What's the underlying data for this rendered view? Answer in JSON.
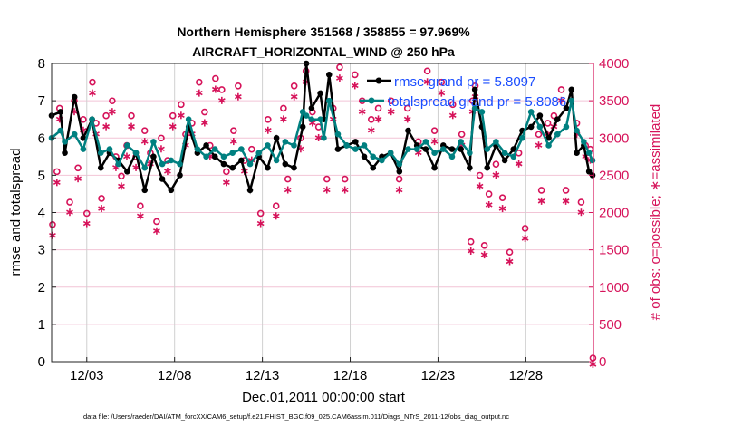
{
  "colors": {
    "rmse": "#000000",
    "spread": "#008080",
    "obs": "#d6135a",
    "legend_text": "#1a4dff",
    "grid_v": "#d0d0d0",
    "grid_h": "#f2c4d6"
  },
  "chart_data": {
    "type": "line",
    "title": [
      "Northern Hemisphere 351568 / 358855 = 97.969%",
      "AIRCRAFT_HORIZONTAL_WIND @ 250 hPa"
    ],
    "xlabel": "Dec.01,2011 00:00:00 start",
    "ylabel": "rmse and totalspread",
    "ylabel_right": "# of obs: o=possible; ∗=assimilated",
    "xlim_days": [
      0,
      30.85
    ],
    "ylim": [
      0,
      8
    ],
    "ylim_right": [
      0,
      4000
    ],
    "xticks": [
      {
        "day": 2,
        "label": "12/03"
      },
      {
        "day": 7,
        "label": "12/08"
      },
      {
        "day": 12,
        "label": "12/13"
      },
      {
        "day": 17,
        "label": "12/18"
      },
      {
        "day": 22,
        "label": "12/23"
      },
      {
        "day": 27,
        "label": "12/28"
      }
    ],
    "yticks": [
      "0",
      "1",
      "2",
      "3",
      "4",
      "5",
      "6",
      "7",
      "8"
    ],
    "yticks_right": [
      "0",
      "500",
      "1000",
      "1500",
      "2000",
      "2500",
      "3000",
      "3500",
      "4000"
    ],
    "grid": true,
    "legend_position": "top-right",
    "legend": [
      "rmse grand pr = 5.8097",
      "totalspread grand pr = 5.8086"
    ],
    "x_days": [
      0,
      0.5,
      0.75,
      1.3,
      1.8,
      2.3,
      2.8,
      3.3,
      3.8,
      4.3,
      4.8,
      5.3,
      5.8,
      6.3,
      6.8,
      7.3,
      7.8,
      8.3,
      8.8,
      9.3,
      9.8,
      10.3,
      10.8,
      11.3,
      11.8,
      12.3,
      12.8,
      13.3,
      13.8,
      14.3,
      14.5,
      14.8,
      15.3,
      15.5,
      15.8,
      16.3,
      16.8,
      17.3,
      17.8,
      18.3,
      18.8,
      19.3,
      19.8,
      20.3,
      20.8,
      21.3,
      21.8,
      22.3,
      22.8,
      23.3,
      23.8,
      24.1,
      24.5,
      24.8,
      25.3,
      25.8,
      26.3,
      26.8,
      27.3,
      27.8,
      28.3,
      28.8,
      29.3,
      29.6,
      29.9,
      30.3,
      30.6,
      30.8
    ],
    "series": [
      {
        "name": "rmse",
        "values": [
          6.6,
          6.7,
          5.6,
          7.1,
          6.0,
          6.5,
          5.2,
          5.6,
          5.4,
          5.1,
          5.6,
          4.6,
          5.5,
          4.9,
          4.6,
          5.0,
          6.3,
          5.6,
          5.8,
          5.5,
          5.3,
          5.2,
          5.4,
          4.6,
          5.5,
          5.2,
          6.0,
          5.3,
          5.2,
          6.3,
          8.0,
          6.8,
          7.2,
          6.5,
          7.7,
          5.7,
          5.8,
          5.9,
          5.5,
          5.2,
          5.5,
          5.6,
          5.1,
          6.2,
          5.8,
          5.7,
          5.2,
          5.8,
          5.7,
          5.7,
          5.2,
          7.3,
          6.3,
          5.2,
          5.8,
          5.4,
          5.7,
          6.2,
          6.3,
          6.6,
          6.0,
          6.5,
          6.8,
          7.3,
          5.6,
          5.8,
          5.1,
          5.0
        ]
      },
      {
        "name": "totalspread",
        "values": [
          6.0,
          6.2,
          5.9,
          6.1,
          5.7,
          6.5,
          5.6,
          5.7,
          5.3,
          5.8,
          5.6,
          5.2,
          5.9,
          5.3,
          5.4,
          5.3,
          6.5,
          5.7,
          5.5,
          5.7,
          5.5,
          5.6,
          5.7,
          5.3,
          5.6,
          5.8,
          5.4,
          5.9,
          5.8,
          6.7,
          6.6,
          6.5,
          6.5,
          6.0,
          7.0,
          6.1,
          5.8,
          5.7,
          5.8,
          5.5,
          5.4,
          5.6,
          5.3,
          5.7,
          5.7,
          5.9,
          5.6,
          5.7,
          5.5,
          5.9,
          5.6,
          6.8,
          6.7,
          5.7,
          5.9,
          5.6,
          5.5,
          6.0,
          6.7,
          6.3,
          5.8,
          6.1,
          6.3,
          7.0,
          6.2,
          5.9,
          5.6,
          5.4
        ]
      }
    ],
    "obs": {
      "columns": [
        "day",
        "possible",
        "assimilated"
      ],
      "rows": [
        [
          0.05,
          1790,
          1730
        ],
        [
          0.3,
          2500,
          2440
        ],
        [
          0.45,
          3350,
          3290
        ],
        [
          1.03,
          2090,
          2040
        ],
        [
          1.29,
          3450,
          3390
        ],
        [
          1.5,
          2550,
          2490
        ],
        [
          1.8,
          3200,
          3140
        ],
        [
          2.0,
          1940,
          1890
        ],
        [
          2.32,
          3700,
          3640
        ],
        [
          2.53,
          3150,
          3090
        ],
        [
          2.84,
          2140,
          2090
        ],
        [
          3.1,
          3250,
          3190
        ],
        [
          3.45,
          3450,
          3390
        ],
        [
          3.66,
          2700,
          2640
        ],
        [
          3.97,
          2440,
          2390
        ],
        [
          4.28,
          2850,
          2790
        ],
        [
          4.54,
          3250,
          3190
        ],
        [
          4.8,
          2700,
          2640
        ],
        [
          5.05,
          2040,
          1990
        ],
        [
          5.3,
          3050,
          2990
        ],
        [
          5.62,
          2750,
          2690
        ],
        [
          5.98,
          1830,
          1790
        ],
        [
          6.24,
          2950,
          2890
        ],
        [
          6.6,
          2650,
          2590
        ],
        [
          6.9,
          3250,
          3190
        ],
        [
          7.37,
          3400,
          3340
        ],
        [
          7.63,
          3000,
          2940
        ],
        [
          7.99,
          3150,
          3090
        ],
        [
          8.4,
          3700,
          3640
        ],
        [
          8.71,
          3300,
          3240
        ],
        [
          9.02,
          2850,
          2790
        ],
        [
          9.33,
          3750,
          3690
        ],
        [
          9.69,
          3600,
          3540
        ],
        [
          9.95,
          2500,
          2440
        ],
        [
          10.36,
          3050,
          2990
        ],
        [
          10.62,
          3650,
          3590
        ],
        [
          10.98,
          2650,
          2590
        ],
        [
          11.39,
          2800,
          2740
        ],
        [
          11.9,
          1940,
          1890
        ],
        [
          12.32,
          3200,
          3140
        ],
        [
          12.78,
          2040,
          1990
        ],
        [
          13.2,
          3350,
          3290
        ],
        [
          13.45,
          2400,
          2340
        ],
        [
          13.81,
          3650,
          3590
        ],
        [
          14.18,
          2950,
          2890
        ],
        [
          14.48,
          3850,
          3790
        ],
        [
          14.85,
          3300,
          3240
        ],
        [
          15.2,
          3100,
          3040
        ],
        [
          15.67,
          2400,
          2340
        ],
        [
          16.03,
          3350,
          3290
        ],
        [
          16.4,
          3900,
          3840
        ],
        [
          16.7,
          2400,
          2340
        ],
        [
          17.27,
          3800,
          3740
        ],
        [
          17.68,
          3450,
          3390
        ],
        [
          18.2,
          3200,
          3140
        ],
        [
          18.6,
          3350,
          3290
        ],
        [
          19.33,
          3450,
          3390
        ],
        [
          19.79,
          2400,
          2340
        ],
        [
          20.26,
          3350,
          3290
        ],
        [
          20.88,
          2900,
          2840
        ],
        [
          21.39,
          3850,
          3790
        ],
        [
          21.8,
          3050,
          2990
        ],
        [
          22.2,
          3700,
          3640
        ],
        [
          22.84,
          3400,
          3340
        ],
        [
          23.35,
          3000,
          2940
        ],
        [
          23.87,
          1560,
          1520
        ],
        [
          23.97,
          3450,
          3390
        ],
        [
          24.12,
          3650,
          3590
        ],
        [
          24.38,
          2450,
          2390
        ],
        [
          24.64,
          1510,
          1470
        ],
        [
          24.9,
          2200,
          2140
        ],
        [
          25.3,
          2600,
          2540
        ],
        [
          25.67,
          2150,
          2090
        ],
        [
          26.08,
          1420,
          1380
        ],
        [
          26.6,
          2750,
          2690
        ],
        [
          26.96,
          1740,
          1690
        ],
        [
          27.73,
          3000,
          2940
        ],
        [
          27.89,
          2250,
          2190
        ],
        [
          28.25,
          3150,
          3090
        ],
        [
          28.6,
          3250,
          3190
        ],
        [
          29.02,
          3600,
          3540
        ],
        [
          29.28,
          2250,
          2190
        ],
        [
          29.9,
          3150,
          3090
        ],
        [
          30.15,
          2090,
          2040
        ],
        [
          30.4,
          2850,
          2790
        ],
        [
          30.67,
          2800,
          2740
        ],
        [
          30.82,
          0,
          0
        ]
      ]
    }
  },
  "footer": "data file: /Users/raeder/DAI/ATM_forcXX/CAM6_setup/f.e21.FHIST_BGC.f09_025.CAM6assim.011/Diags_NTrS_2011-12/obs_diag_output.nc"
}
